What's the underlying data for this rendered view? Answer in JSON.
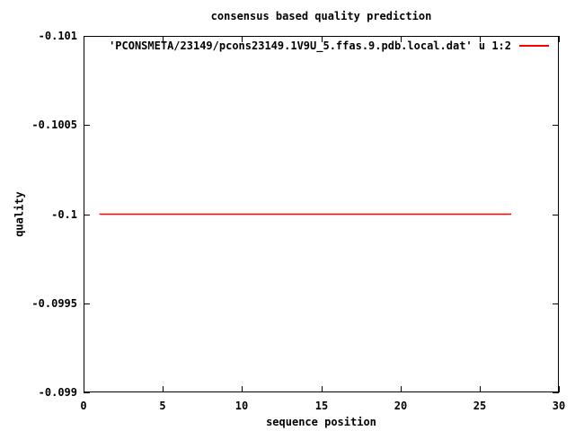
{
  "colors": {
    "background": "#ffffff",
    "axis_and_text": "#000000",
    "series_red": "#ff0000"
  },
  "chart_data": {
    "type": "line",
    "title": "consensus based quality prediction",
    "xlabel": "sequence position",
    "ylabel": "quality",
    "xlim": [
      0,
      30
    ],
    "ylim_top_bottom": [
      -0.101,
      -0.099
    ],
    "y_axis_inverted": true,
    "grid": false,
    "xticks": [
      0,
      5,
      10,
      15,
      20,
      25,
      30
    ],
    "xtick_labels": [
      "0",
      "5",
      "10",
      "15",
      "20",
      "25",
      "30"
    ],
    "yticks": [
      -0.101,
      -0.1005,
      -0.1,
      -0.0995,
      -0.099
    ],
    "ytick_labels": [
      "-0.101",
      "-0.1005",
      "-0.1",
      "-0.0995",
      "-0.099"
    ],
    "legend_position": "top-right-inside",
    "series": [
      {
        "legend_label": "'PCONSMETA/23149/pcons23149.1V9U_5.ffas.9.pdb.local.dat' u 1:2",
        "color": "#ff0000",
        "x": [
          1,
          27
        ],
        "y": [
          -0.1,
          -0.1
        ],
        "description": "constant quality value -0.1 from sequence position 1 to 27"
      }
    ]
  }
}
